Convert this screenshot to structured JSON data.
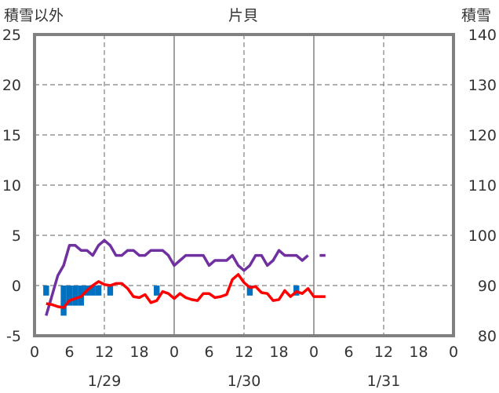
{
  "chart_data": {
    "type": "line",
    "title": "片貝",
    "left_axis_label": "積雪以外",
    "right_axis_label": "積雪",
    "left_ylim": [
      -5,
      25
    ],
    "left_yticks": [
      -5,
      0,
      5,
      10,
      15,
      20,
      25
    ],
    "right_ylim": [
      80,
      140
    ],
    "right_yticks": [
      80,
      90,
      100,
      110,
      120,
      130,
      140
    ],
    "xlim": [
      0,
      72
    ],
    "x_unit": "hours since 1/29 00:00",
    "x_tick_labels": [
      "0",
      "6",
      "12",
      "18",
      "0",
      "6",
      "12",
      "18",
      "0",
      "6",
      "12",
      "18",
      "0"
    ],
    "date_labels": [
      "1/29",
      "1/30",
      "1/31"
    ],
    "colors": {
      "snow_depth": "#7030a0",
      "temperature": "#ff0000",
      "precipitation": "#0070c0",
      "grid": "#808080",
      "frame": "#808080"
    },
    "series": [
      {
        "name": "snow_depth",
        "axis": "right",
        "x": [
          2,
          3,
          4,
          5,
          6,
          7,
          8,
          9,
          10,
          11,
          12,
          13,
          14,
          15,
          16,
          17,
          18,
          19,
          20,
          21,
          22,
          23,
          24,
          25,
          26,
          27,
          28,
          29,
          30,
          31,
          32,
          33,
          34,
          35,
          36,
          37,
          38,
          39,
          40,
          41,
          42,
          43,
          44,
          45,
          46,
          47,
          null,
          49,
          50
        ],
        "values": [
          84,
          88,
          92,
          94,
          98,
          98,
          97,
          97,
          96,
          98,
          99,
          98,
          96,
          96,
          97,
          97,
          96,
          96,
          97,
          97,
          97,
          96,
          94,
          95,
          96,
          96,
          96,
          96,
          94,
          95,
          95,
          95,
          96,
          94,
          93,
          94,
          96,
          96,
          94,
          95,
          97,
          96,
          96,
          96,
          95,
          96,
          null,
          96,
          96
        ]
      },
      {
        "name": "temperature",
        "axis": "left",
        "x": [
          2,
          3,
          4,
          5,
          6,
          7,
          8,
          9,
          10,
          11,
          12,
          13,
          14,
          15,
          16,
          17,
          18,
          19,
          20,
          21,
          22,
          23,
          24,
          25,
          26,
          27,
          28,
          29,
          30,
          31,
          32,
          33,
          34,
          35,
          36,
          37,
          38,
          39,
          40,
          41,
          42,
          43,
          44,
          45,
          46,
          47,
          48,
          49,
          50
        ],
        "values": [
          -1.8,
          -1.9,
          -2.1,
          -2.2,
          -1.5,
          -1.3,
          -1.1,
          -0.5,
          0,
          0.4,
          0.1,
          0,
          0.2,
          0.2,
          -0.3,
          -1.1,
          -1.2,
          -0.9,
          -1.7,
          -1.5,
          -0.6,
          -0.8,
          -1.3,
          -0.8,
          -1.2,
          -1.4,
          -1.5,
          -0.8,
          -0.8,
          -1.2,
          -1.1,
          -0.9,
          0.6,
          1.1,
          0.3,
          -0.2,
          -0.1,
          -0.7,
          -0.8,
          -1.5,
          -1.4,
          -0.5,
          -1.1,
          -0.6,
          -0.8,
          -0.3,
          -1.1,
          -1.1,
          -1.1
        ]
      },
      {
        "name": "precipitation",
        "axis": "left",
        "type": "bar",
        "x": [
          2,
          5,
          6,
          7,
          8,
          9,
          10,
          11,
          13,
          21,
          37,
          45
        ],
        "values": [
          -1,
          -3,
          -2,
          -2,
          -2,
          -1,
          -1,
          -1,
          -1,
          -1,
          -1,
          -1
        ]
      }
    ]
  }
}
